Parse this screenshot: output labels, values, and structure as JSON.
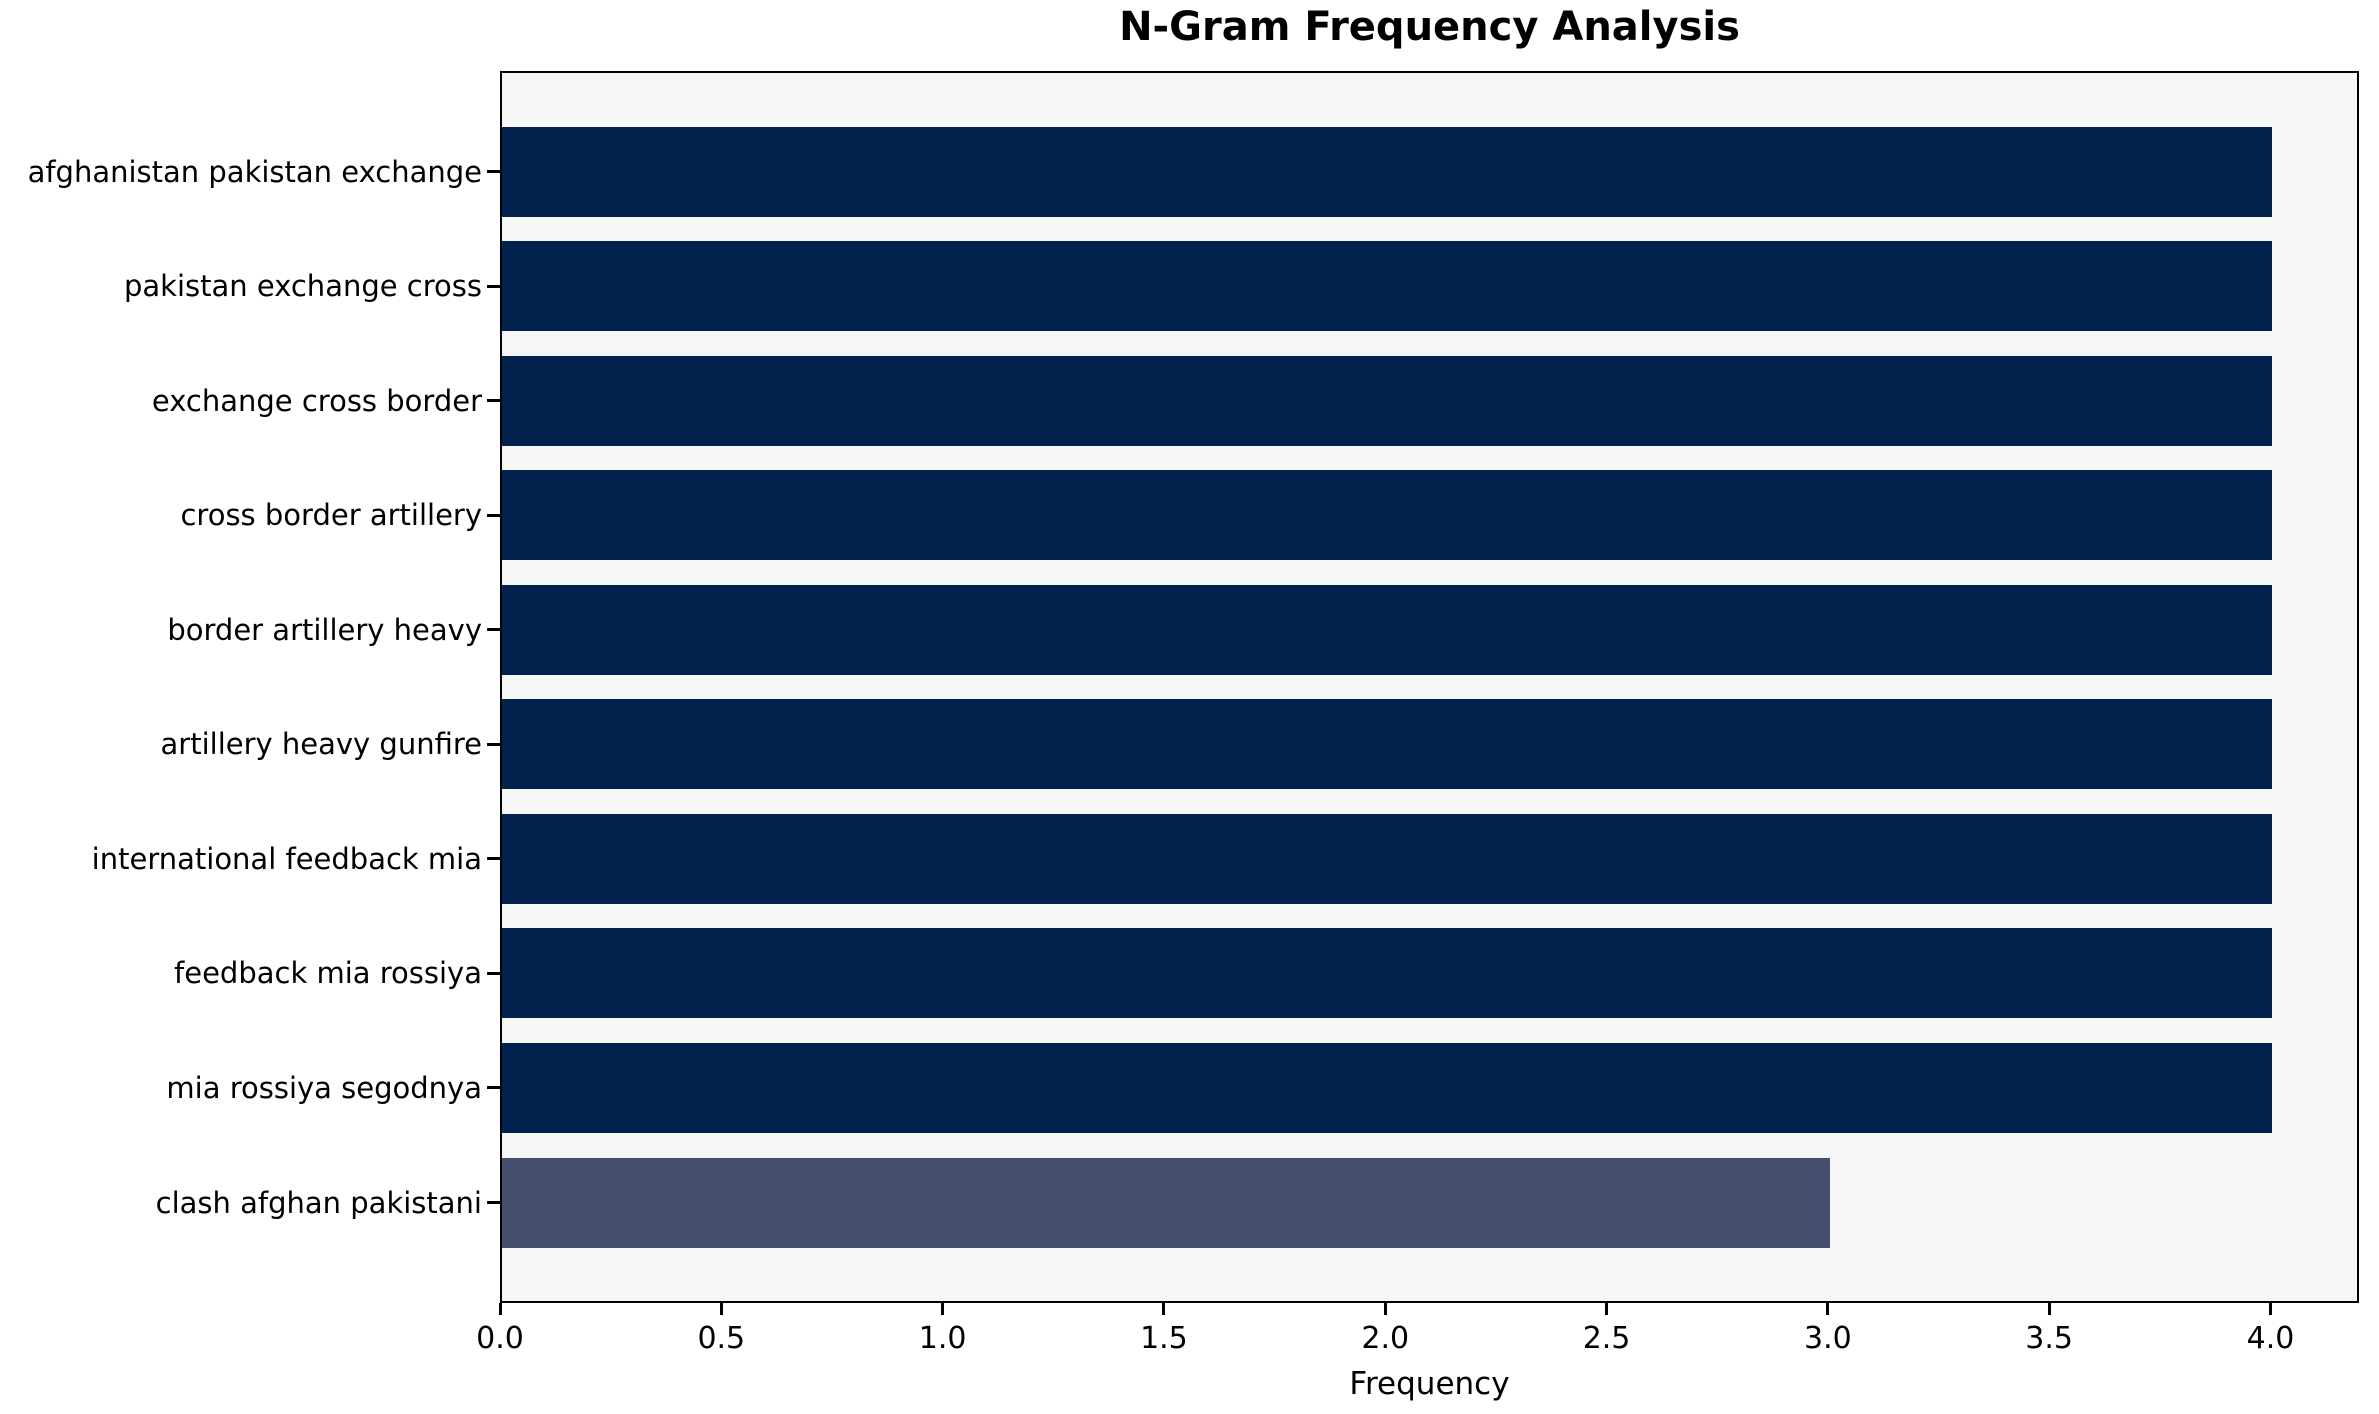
{
  "chart_data": {
    "type": "bar",
    "orientation": "horizontal",
    "title": "N-Gram Frequency Analysis",
    "xlabel": "Frequency",
    "ylabel": "",
    "categories": [
      "afghanistan pakistan exchange",
      "pakistan exchange cross",
      "exchange cross border",
      "cross border artillery",
      "border artillery heavy",
      "artillery heavy gunfire",
      "international feedback mia",
      "feedback mia rossiya",
      "mia rossiya segodnya",
      "clash afghan pakistani"
    ],
    "values": [
      4,
      4,
      4,
      4,
      4,
      4,
      4,
      4,
      4,
      3
    ],
    "xlim": [
      0,
      4.2
    ],
    "xticks": [
      0,
      0.5,
      1,
      1.5,
      2,
      2.5,
      3,
      3.5,
      4
    ],
    "xtick_labels": [
      "0.0",
      "0.5",
      "1.0",
      "1.5",
      "2.0",
      "2.5",
      "3.0",
      "3.5",
      "4.0"
    ],
    "bar_colors": [
      "#03234e",
      "#03234e",
      "#03234e",
      "#03234e",
      "#03234e",
      "#03234e",
      "#03234e",
      "#03234e",
      "#03234e",
      "#454f6c"
    ],
    "grid": false,
    "legend": null,
    "colors": {
      "bar_default": "#03234e",
      "bar_highlight_last": "#454f6c",
      "plot_background": "#f6f6f7",
      "figure_background": "#ffffff",
      "spine": "#000000",
      "text": "#000000"
    }
  }
}
